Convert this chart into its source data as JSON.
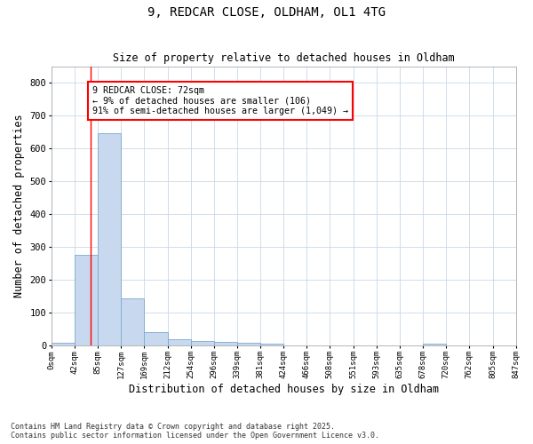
{
  "title_line1": "9, REDCAR CLOSE, OLDHAM, OL1 4TG",
  "title_line2": "Size of property relative to detached houses in Oldham",
  "xlabel": "Distribution of detached houses by size in Oldham",
  "ylabel": "Number of detached properties",
  "bar_color": "#c8d8ee",
  "bar_edge_color": "#7aaad0",
  "grid_color": "#c8d8e8",
  "vline_x": 72,
  "vline_color": "red",
  "annotation_text": "9 REDCAR CLOSE: 72sqm\n← 9% of detached houses are smaller (106)\n91% of semi-detached houses are larger (1,049) →",
  "annotation_box_color": "white",
  "annotation_box_edge": "red",
  "footnote": "Contains HM Land Registry data © Crown copyright and database right 2025.\nContains public sector information licensed under the Open Government Licence v3.0.",
  "bin_edges": [
    0,
    42,
    85,
    127,
    169,
    212,
    254,
    296,
    339,
    381,
    424,
    466,
    508,
    551,
    593,
    635,
    678,
    720,
    762,
    805,
    847
  ],
  "bar_heights": [
    8,
    275,
    645,
    142,
    40,
    18,
    12,
    10,
    8,
    5,
    0,
    0,
    0,
    0,
    0,
    0,
    5,
    0,
    0,
    0
  ],
  "ylim": [
    0,
    850
  ],
  "xlim": [
    0,
    847
  ],
  "tick_labels": [
    "0sqm",
    "42sqm",
    "85sqm",
    "127sqm",
    "169sqm",
    "212sqm",
    "254sqm",
    "296sqm",
    "339sqm",
    "381sqm",
    "424sqm",
    "466sqm",
    "508sqm",
    "551sqm",
    "593sqm",
    "635sqm",
    "678sqm",
    "720sqm",
    "762sqm",
    "805sqm",
    "847sqm"
  ],
  "background_color": "#ffffff",
  "plot_background": "#ffffff",
  "yticks": [
    0,
    100,
    200,
    300,
    400,
    500,
    600,
    700,
    800
  ]
}
